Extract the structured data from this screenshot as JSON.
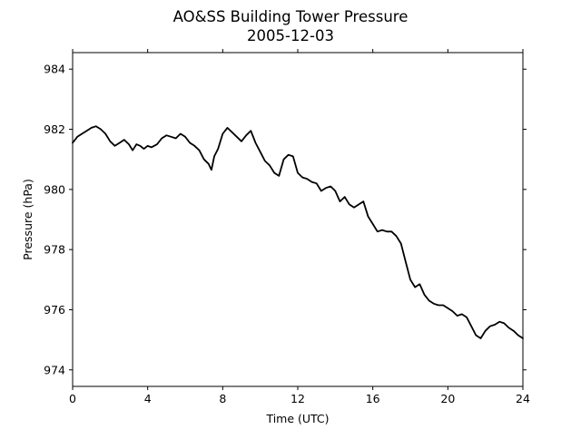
{
  "chart_data": {
    "type": "line",
    "title": "AO&SS Building Tower Pressure",
    "subtitle": "2005-12-03",
    "xlabel": "Time (UTC)",
    "ylabel": "Pressure (hPa)",
    "xlim": [
      0,
      24
    ],
    "ylim": [
      973.45,
      984.55
    ],
    "xticks": [
      0,
      4,
      8,
      12,
      16,
      20,
      24
    ],
    "yticks": [
      974,
      976,
      978,
      980,
      982,
      984
    ],
    "grid": false,
    "line_color": "#000000",
    "series": [
      {
        "x": [
          0,
          0.25,
          0.5,
          0.75,
          1.0,
          1.25,
          1.5,
          1.75,
          2.0,
          2.25,
          2.5,
          2.75,
          3.0,
          3.2,
          3.4,
          3.6,
          3.8,
          4.0,
          4.2,
          4.5,
          4.75,
          5.0,
          5.25,
          5.5,
          5.75,
          6.0,
          6.25,
          6.5,
          6.75,
          7.0,
          7.25,
          7.4,
          7.55,
          7.75,
          8.0,
          8.25,
          8.5,
          8.75,
          9.0,
          9.25,
          9.5,
          9.75,
          10.0,
          10.25,
          10.5,
          10.75,
          11.0,
          11.25,
          11.5,
          11.75,
          12.0,
          12.25,
          12.5,
          12.75,
          13.0,
          13.25,
          13.5,
          13.75,
          14.0,
          14.25,
          14.5,
          14.75,
          15.0,
          15.25,
          15.5,
          15.75,
          16.0,
          16.25,
          16.5,
          16.75,
          17.0,
          17.25,
          17.5,
          17.75,
          18.0,
          18.25,
          18.5,
          18.75,
          19.0,
          19.25,
          19.5,
          19.75,
          20.0,
          20.25,
          20.5,
          20.75,
          21.0,
          21.25,
          21.5,
          21.75,
          22.0,
          22.25,
          22.5,
          22.75,
          23.0,
          23.25,
          23.5,
          23.75,
          24.0
        ],
        "y": [
          981.55,
          981.75,
          981.85,
          981.95,
          982.05,
          982.1,
          982.0,
          981.85,
          981.6,
          981.45,
          981.55,
          981.65,
          981.5,
          981.3,
          981.5,
          981.45,
          981.35,
          981.45,
          981.4,
          981.5,
          981.7,
          981.8,
          981.75,
          981.7,
          981.85,
          981.75,
          981.55,
          981.45,
          981.3,
          981.0,
          980.85,
          980.65,
          981.1,
          981.35,
          981.85,
          982.05,
          981.9,
          981.75,
          981.6,
          981.8,
          981.95,
          981.55,
          981.25,
          980.95,
          980.8,
          980.55,
          980.45,
          981.0,
          981.15,
          981.1,
          980.55,
          980.4,
          980.35,
          980.25,
          980.2,
          979.95,
          980.05,
          980.1,
          979.95,
          979.6,
          979.75,
          979.5,
          979.4,
          979.5,
          979.6,
          979.1,
          978.85,
          978.6,
          978.65,
          978.6,
          978.6,
          978.45,
          978.2,
          977.6,
          977.0,
          976.75,
          976.85,
          976.5,
          976.3,
          976.2,
          976.15,
          976.15,
          976.05,
          975.95,
          975.8,
          975.85,
          975.75,
          975.45,
          975.15,
          975.05,
          975.3,
          975.45,
          975.5,
          975.6,
          975.55,
          975.4,
          975.3,
          975.15,
          975.05
        ]
      }
    ]
  }
}
